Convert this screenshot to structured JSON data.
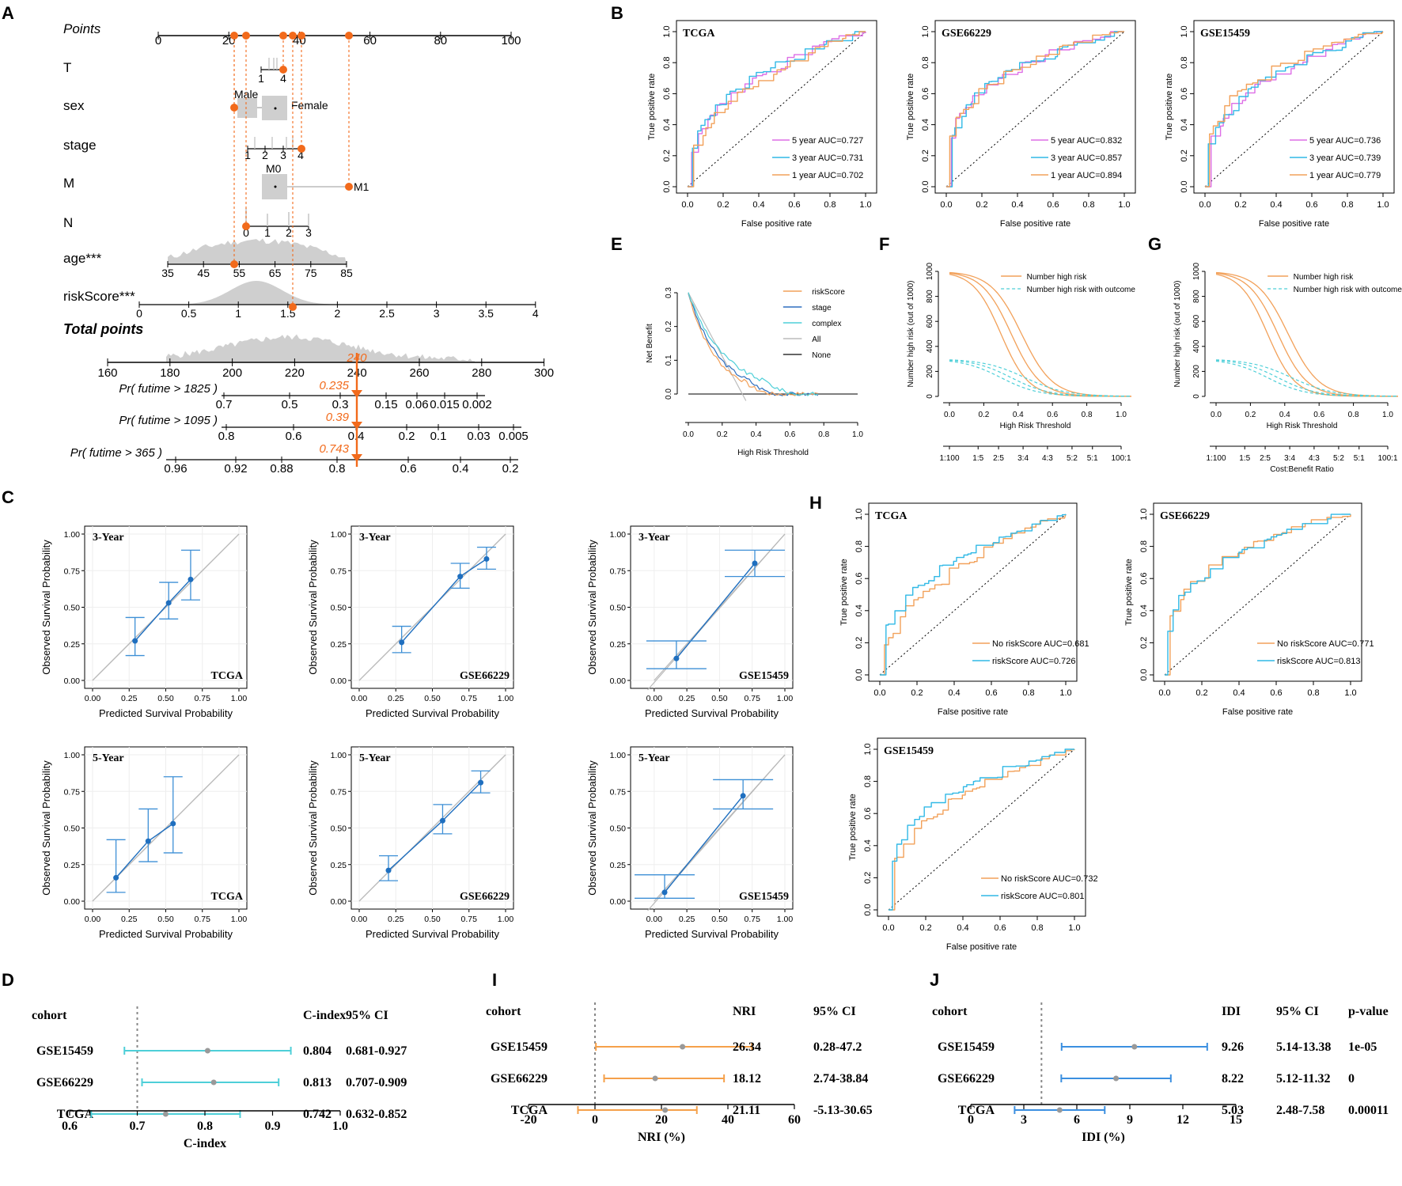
{
  "panel_letters": [
    "A",
    "B",
    "C",
    "D",
    "E",
    "F",
    "G",
    "H",
    "I",
    "J"
  ],
  "chart_data": {
    "A": {
      "type": "nomogram",
      "rows": [
        {
          "label": "Points",
          "ticks": [
            "0",
            "20",
            "40",
            "60",
            "80",
            "100"
          ]
        },
        {
          "label": "T",
          "ticks": [
            "1",
            "4"
          ]
        },
        {
          "label": "sex",
          "levels": [
            "Male",
            "Female"
          ]
        },
        {
          "label": "stage",
          "ticks": [
            "1",
            "2",
            "3",
            "4"
          ]
        },
        {
          "label": "M",
          "levels": [
            "M0",
            "M1"
          ]
        },
        {
          "label": "N",
          "ticks": [
            "0",
            "1",
            "2",
            "3"
          ]
        },
        {
          "label": "age***",
          "ticks": [
            "35",
            "45",
            "55",
            "65",
            "75",
            "85"
          ]
        },
        {
          "label": "riskScore***",
          "ticks": [
            "0",
            "0.5",
            "1",
            "1.5",
            "2",
            "2.5",
            "3",
            "3.5",
            "4"
          ]
        },
        {
          "label": "Total points",
          "ticks": [
            "160",
            "180",
            "200",
            "220",
            "240",
            "260",
            "280",
            "300"
          ]
        },
        {
          "label": "Pr( futime > 1825 )",
          "ticks": [
            "0.7",
            "0.5",
            "0.3",
            "0.15",
            "0.06",
            "0.015",
            "0.002"
          ]
        },
        {
          "label": "Pr( futime > 1095 )",
          "ticks": [
            "0.8",
            "0.6",
            "0.4",
            "0.2",
            "0.1",
            "0.03",
            "0.005"
          ]
        },
        {
          "label": "Pr( futime > 365 )",
          "ticks": [
            "0.96",
            "0.92",
            "0.88",
            "0.8",
            "0.6",
            "0.4",
            "0.2"
          ]
        }
      ],
      "patient_points": [
        21,
        25,
        36,
        38.5,
        41,
        55
      ],
      "total_points": "240",
      "predictions": [
        "0.235",
        "0.39",
        "0.743"
      ]
    },
    "B": [
      {
        "cohort": "TCGA",
        "legend": [
          "5 year AUC=0.727",
          "3 year AUC=0.731",
          "1 year AUC=0.702"
        ]
      },
      {
        "cohort": "GSE66229",
        "legend": [
          "5 year AUC=0.832",
          "3 year AUC=0.857",
          "1 year AUC=0.894"
        ]
      },
      {
        "cohort": "GSE15459",
        "legend": [
          "5 year AUC=0.736",
          "3 year AUC=0.739",
          "1 year AUC=0.779"
        ]
      }
    ],
    "B_axes": {
      "xlabel": "False positive rate",
      "ylabel": "True positive rate",
      "ticks": [
        "0.0",
        "0.2",
        "0.4",
        "0.6",
        "0.8",
        "1.0"
      ]
    },
    "C": {
      "type": "calibration",
      "xlabel": "Predicted Survival Probability",
      "ylabel": "Observed Survival Probability",
      "ticks": [
        "0.00",
        "0.25",
        "0.50",
        "0.75",
        "1.00"
      ],
      "plots": [
        {
          "year": "3-Year",
          "cohort": "TCGA",
          "points": [
            [
              0.29,
              0.27
            ],
            [
              0.52,
              0.53
            ],
            [
              0.67,
              0.69
            ]
          ],
          "err": [
            [
              0.17,
              0.43
            ],
            [
              0.42,
              0.67
            ],
            [
              0.55,
              0.89
            ]
          ]
        },
        {
          "year": "3-Year",
          "cohort": "GSE66229",
          "points": [
            [
              0.29,
              0.26
            ],
            [
              0.69,
              0.71
            ],
            [
              0.87,
              0.83
            ]
          ],
          "err": [
            [
              0.19,
              0.37
            ],
            [
              0.63,
              0.8
            ],
            [
              0.76,
              0.91
            ]
          ]
        },
        {
          "year": "3-Year",
          "cohort": "GSE15459",
          "points": [
            [
              0.17,
              0.15
            ],
            [
              0.77,
              0.8
            ]
          ],
          "err": [
            [
              0.08,
              0.27
            ],
            [
              0.71,
              0.89
            ]
          ]
        },
        {
          "year": "5-Year",
          "cohort": "TCGA",
          "points": [
            [
              0.16,
              0.16
            ],
            [
              0.38,
              0.41
            ],
            [
              0.55,
              0.53
            ]
          ],
          "err": [
            [
              0.06,
              0.42
            ],
            [
              0.27,
              0.63
            ],
            [
              0.33,
              0.85
            ]
          ]
        },
        {
          "year": "5-Year",
          "cohort": "GSE66229",
          "points": [
            [
              0.2,
              0.21
            ],
            [
              0.57,
              0.55
            ],
            [
              0.83,
              0.81
            ]
          ],
          "err": [
            [
              0.14,
              0.31
            ],
            [
              0.46,
              0.66
            ],
            [
              0.74,
              0.89
            ]
          ]
        },
        {
          "year": "5-Year",
          "cohort": "GSE15459",
          "points": [
            [
              0.08,
              0.06
            ],
            [
              0.68,
              0.72
            ]
          ],
          "err": [
            [
              0.02,
              0.18
            ],
            [
              0.63,
              0.83
            ]
          ]
        }
      ]
    },
    "D": {
      "type": "forest",
      "headers": [
        "cohort",
        "C-index",
        "95% CI"
      ],
      "rows": [
        {
          "cohort": "GSE15459",
          "est": 0.804,
          "lo": 0.681,
          "hi": 0.927,
          "cols": [
            "0.804",
            "0.681-0.927"
          ]
        },
        {
          "cohort": "GSE66229",
          "est": 0.813,
          "lo": 0.707,
          "hi": 0.909,
          "cols": [
            "0.813",
            "0.707-0.909"
          ]
        },
        {
          "cohort": "TCGA",
          "est": 0.742,
          "lo": 0.632,
          "hi": 0.852,
          "cols": [
            "0.742",
            "0.632-0.852"
          ]
        }
      ],
      "xlim": [
        0.6,
        1.0
      ],
      "ref": 0.7,
      "ticks": [
        "0.6",
        "0.7",
        "0.8",
        "0.9",
        "1.0"
      ],
      "xlabel": "C-index",
      "color": "#4ecfd8"
    },
    "E": {
      "type": "decision-curve",
      "xlabel": "High Risk Threshold",
      "ylabel": "Net Benefit",
      "xticks": [
        "0.0",
        "0.2",
        "0.4",
        "0.6",
        "0.8",
        "1.0"
      ],
      "yticks": [
        "0.0",
        "0.1",
        "0.2",
        "0.3"
      ],
      "legend": [
        "riskScore",
        "stage",
        "complex",
        "All",
        "None"
      ]
    },
    "F": {
      "type": "clinical-impact",
      "xlabel": "High Risk Threshold",
      "ylabel": "Number high risk (out of 1000)",
      "xticks": [
        "0.0",
        "0.2",
        "0.4",
        "0.6",
        "0.8",
        "1.0"
      ],
      "yticks": [
        "0",
        "200",
        "400",
        "600",
        "800",
        "1000"
      ],
      "ratios": [
        "1:100",
        "1:5",
        "2:5",
        "3:4",
        "4:3",
        "5:2",
        "5:1",
        "100:1"
      ],
      "legend": [
        "Number high risk",
        "Number high risk with outcome"
      ],
      "ratio_label": ""
    },
    "G": {
      "type": "clinical-impact",
      "xlabel": "High Risk Threshold",
      "ylabel": "Number high risk (out of 1000)",
      "xticks": [
        "0.0",
        "0.2",
        "0.4",
        "0.6",
        "0.8",
        "1.0"
      ],
      "yticks": [
        "0",
        "200",
        "400",
        "600",
        "800",
        "1000"
      ],
      "ratios": [
        "1:100",
        "1:5",
        "2:5",
        "3:4",
        "4:3",
        "5:2",
        "5:1",
        "100:1"
      ],
      "legend": [
        "Number high risk",
        "Number high risk with outcome"
      ],
      "ratio_label": "Cost:Benefit Ratio"
    },
    "H": [
      {
        "cohort": "TCGA",
        "legend": [
          "No riskScore AUC=0.681",
          "riskScore AUC=0.726"
        ]
      },
      {
        "cohort": "GSE66229",
        "legend": [
          "No riskScore AUC=0.771",
          "riskScore AUC=0.813"
        ]
      },
      {
        "cohort": "GSE15459",
        "legend": [
          "No riskScore AUC=0.732",
          "riskScore AUC=0.801"
        ]
      }
    ],
    "I": {
      "type": "forest",
      "headers": [
        "cohort",
        "NRI",
        "95% CI"
      ],
      "rows": [
        {
          "cohort": "GSE15459",
          "est": 26.34,
          "lo": 0.28,
          "hi": 47.2,
          "cols": [
            "26.34",
            "0.28-47.2"
          ]
        },
        {
          "cohort": "GSE66229",
          "est": 18.12,
          "lo": 2.74,
          "hi": 38.84,
          "cols": [
            "18.12",
            "2.74-38.84"
          ]
        },
        {
          "cohort": "TCGA",
          "est": 21.11,
          "lo": -5.13,
          "hi": 30.65,
          "cols": [
            "21.11",
            "-5.13-30.65"
          ]
        }
      ],
      "xlim": [
        -20,
        60
      ],
      "ref": 0,
      "ticks": [
        "-20",
        "0",
        "20",
        "40",
        "60"
      ],
      "xlabel": "NRI (%)",
      "color": "#f5a04a"
    },
    "J": {
      "type": "forest",
      "headers": [
        "cohort",
        "IDI",
        "95% CI",
        "p-value"
      ],
      "rows": [
        {
          "cohort": "GSE15459",
          "est": 9.26,
          "lo": 5.14,
          "hi": 13.38,
          "cols": [
            "9.26",
            "5.14-13.38",
            "1e-05"
          ]
        },
        {
          "cohort": "GSE66229",
          "est": 8.22,
          "lo": 5.12,
          "hi": 11.32,
          "cols": [
            "8.22",
            "5.12-11.32",
            "0"
          ]
        },
        {
          "cohort": "TCGA",
          "est": 5.03,
          "lo": 2.48,
          "hi": 7.58,
          "cols": [
            "5.03",
            "2.48-7.58",
            "0.00011"
          ]
        }
      ],
      "xlim": [
        0,
        15
      ],
      "ref": 4,
      "ticks": [
        "0",
        "3",
        "6",
        "9",
        "12",
        "15"
      ],
      "xlabel": "IDI (%)",
      "color": "#3b8fe0"
    }
  },
  "colors": {
    "orange": "#f2a15a",
    "cyan": "#31b9e6",
    "magenta": "#dd6ee6",
    "blue": "#1f6fbf",
    "nomo": "#f26a1b",
    "grey": "#bdbdbd"
  }
}
